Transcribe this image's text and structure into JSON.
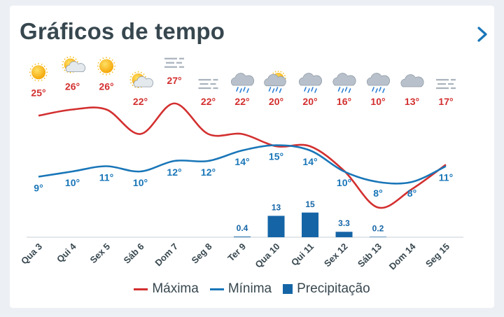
{
  "header": {
    "title": "Gráficos de tempo"
  },
  "colors": {
    "max": "#d32f2f",
    "min": "#1976b8",
    "precip": "#1565a6",
    "tick": "#37474f"
  },
  "chart_data": {
    "type": "line",
    "categories": [
      "Qua 3",
      "Qui 4",
      "Sex 5",
      "Sáb 6",
      "Dom 7",
      "Seg 8",
      "Ter 9",
      "Qua 10",
      "Qui 11",
      "Sex 12",
      "Sáb 13",
      "Dom 14",
      "Seg 15"
    ],
    "icons": [
      "sun-icon",
      "sun-cloud-icon",
      "sun-icon",
      "sun-cloud-icon",
      "fog-icon",
      "fog-icon",
      "cloud-rain-icon",
      "sun-cloud-rain-icon",
      "cloud-rain-icon",
      "cloud-rain-icon",
      "cloud-rain-icon",
      "cloud-icon",
      "fog-icon"
    ],
    "series": [
      {
        "name": "Máxima",
        "type": "line",
        "values": [
          25,
          26,
          26,
          22,
          27,
          22,
          22,
          20,
          20,
          16,
          10,
          13,
          17
        ],
        "labels": [
          "25°",
          "26°",
          "26°",
          "22°",
          "27°",
          "22°",
          "22°",
          "20°",
          "20°",
          "16°",
          "10°",
          "13°",
          "17°"
        ]
      },
      {
        "name": "Mínima",
        "type": "line",
        "values": [
          9,
          10,
          11,
          10,
          12,
          12,
          14,
          15,
          14,
          10,
          8,
          8,
          11
        ],
        "labels": [
          "9°",
          "10°",
          "11°",
          "10°",
          "12°",
          "12°",
          "14°",
          "15°",
          "14°",
          "10°",
          "8°",
          "8°",
          "11°"
        ]
      },
      {
        "name": "Precipitação",
        "type": "bar",
        "values": [
          null,
          null,
          null,
          null,
          null,
          null,
          0.4,
          13,
          15,
          3.3,
          0.2,
          null,
          null
        ],
        "labels": [
          "",
          "",
          "",
          "",
          "",
          "",
          "0.4",
          "13",
          "15",
          "3.3",
          "0.2",
          "",
          ""
        ]
      }
    ]
  }
}
